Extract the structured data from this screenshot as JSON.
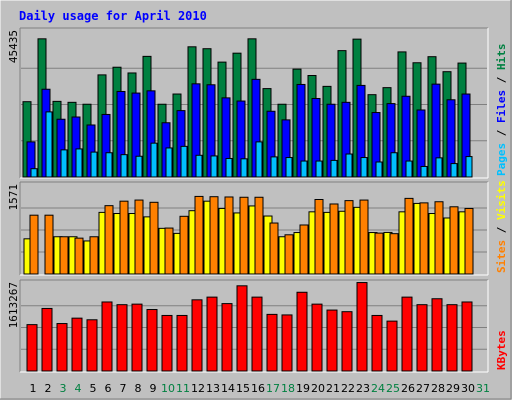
{
  "chart_data": {
    "type": "bar",
    "title": "Daily usage for April 2010",
    "days": [
      "1",
      "2",
      "3",
      "4",
      "5",
      "6",
      "7",
      "8",
      "9",
      "10",
      "11",
      "12",
      "13",
      "14",
      "15",
      "16",
      "17",
      "18",
      "19",
      "20",
      "21",
      "22",
      "23",
      "24",
      "25",
      "26",
      "27",
      "28",
      "29",
      "30",
      "31"
    ],
    "weekend_days": [
      "3",
      "4",
      "10",
      "11",
      "17",
      "18",
      "24",
      "25",
      "31"
    ],
    "panels": [
      {
        "name": "hits-files-pages",
        "max_label": "45435",
        "ymax": 45435,
        "ylabel_parts": [
          "Pages",
          "Files",
          "Hits"
        ],
        "ylabel_separator": " / ",
        "series": [
          {
            "name": "Hits",
            "color": "#008040",
            "values": [
              23600,
              43300,
              23700,
              23400,
              22800,
              32000,
              34400,
              32600,
              37800,
              22800,
              26000,
              40800,
              40200,
              36000,
              38800,
              43300,
              27700,
              22800,
              33800,
              31800,
              28400,
              39600,
              43200,
              25800,
              28000,
              39200,
              35800,
              37700,
              33000,
              35700,
              null
            ]
          },
          {
            "name": "Files",
            "color": "#0000ff",
            "values": [
              11000,
              27500,
              18100,
              18800,
              16300,
              19600,
              26800,
              26300,
              27000,
              17000,
              20800,
              29200,
              28900,
              24800,
              23800,
              30600,
              20600,
              17900,
              29000,
              24600,
              22800,
              23400,
              28700,
              20200,
              23000,
              25300,
              21000,
              29100,
              24200,
              26000,
              null
            ]
          },
          {
            "name": "Pages",
            "color": "#00c0ff",
            "values": [
              2600,
              20400,
              8500,
              8800,
              7800,
              7600,
              7000,
              6500,
              10600,
              9100,
              9600,
              6800,
              6600,
              5800,
              5700,
              11000,
              6300,
              6100,
              5000,
              5000,
              5200,
              7200,
              6100,
              4700,
              7600,
              5000,
              3300,
              6000,
              4200,
              6400,
              null
            ]
          }
        ]
      },
      {
        "name": "visits-sites",
        "max_label": "1571",
        "ymax": 1571,
        "ylabel_parts": [
          "Sites",
          "Visits"
        ],
        "ylabel_separator": " / ",
        "series": [
          {
            "name": "Visits",
            "color": "#ffff00",
            "values": [
              628,
              0,
              665,
              665,
              590,
              1100,
              1080,
              1080,
              1020,
              815,
              725,
              1130,
              1300,
              1170,
              1090,
              1215,
              1035,
              665,
              740,
              1110,
              1100,
              1120,
              1190,
              740,
              742,
              1110,
              1260,
              1080,
              1000,
              1110,
              null
            ]
          },
          {
            "name": "Sites",
            "color": "#ff8000",
            "values": [
              1050,
              1050,
              665,
              640,
              665,
              1220,
              1300,
              1320,
              1280,
              820,
              1030,
              1385,
              1380,
              1375,
              1370,
              1370,
              910,
              700,
              875,
              1330,
              1250,
              1310,
              1320,
              730,
              720,
              1350,
              1270,
              1290,
              1200,
              1170,
              null
            ]
          }
        ]
      },
      {
        "name": "kbytes",
        "max_label": "1613267",
        "ymax": 1613267,
        "ylabel_parts": [
          "KBytes"
        ],
        "ylabel_separator": "",
        "series": [
          {
            "name": "KBytes",
            "color": "#ff0000",
            "values": [
              860000,
              1160000,
              880000,
              980000,
              950000,
              1280000,
              1230000,
              1240000,
              1140000,
              1030000,
              1030000,
              1320000,
              1370000,
              1250000,
              1580000,
              1370000,
              1050000,
              1040000,
              1460000,
              1240000,
              1130000,
              1100000,
              1640000,
              1030000,
              925000,
              1370000,
              1230000,
              1340000,
              1230000,
              1280000,
              null
            ]
          }
        ]
      }
    ]
  },
  "colors": {
    "background": "#c0c0c0",
    "title": "#0000ff",
    "weekday_label": "#000000",
    "weekend_label": "#008040",
    "axis_label": "#000000"
  }
}
